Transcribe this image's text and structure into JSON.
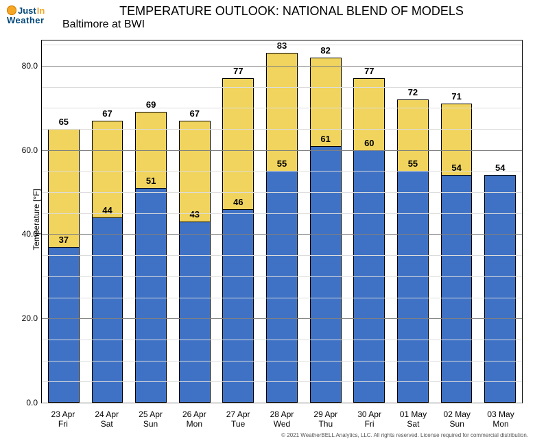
{
  "meta": {
    "title": "TEMPERATURE OUTLOOK: NATIONAL BLEND OF MODELS",
    "subtitle": "Baltimore at BWI",
    "ylabel": "Temperature [°F]",
    "copyright": "© 2021 WeatherBELL Analytics, LLC. All rights reserved. License required for commercial distribution.",
    "logo_line1a": "Just",
    "logo_line1b": "In",
    "logo_line2": "Weather"
  },
  "style": {
    "high_color": "#f0d45e",
    "low_color": "#3f72c5",
    "grid_major_color": "#808080",
    "grid_minor_color": "#dcdcdc",
    "bg": "#ffffff",
    "font_family": "Arial",
    "title_fontsize": 18,
    "axis_fontsize": 12,
    "value_fontsize": 13
  },
  "yaxis": {
    "min": 0.0,
    "max": 86.0,
    "major_ticks": [
      0.0,
      20.0,
      40.0,
      60.0,
      80.0
    ],
    "minor_step": 5.0
  },
  "series": [
    {
      "date": "23 Apr",
      "dow": "Fri",
      "high": 65,
      "low": 37
    },
    {
      "date": "24 Apr",
      "dow": "Sat",
      "high": 67,
      "low": 44
    },
    {
      "date": "25 Apr",
      "dow": "Sun",
      "high": 69,
      "low": 51
    },
    {
      "date": "26 Apr",
      "dow": "Mon",
      "high": 67,
      "low": 43
    },
    {
      "date": "27 Apr",
      "dow": "Tue",
      "high": 77,
      "low": 46
    },
    {
      "date": "28 Apr",
      "dow": "Wed",
      "high": 83,
      "low": 55
    },
    {
      "date": "29 Apr",
      "dow": "Thu",
      "high": 82,
      "low": 61
    },
    {
      "date": "30 Apr",
      "dow": "Fri",
      "high": 77,
      "low": 60
    },
    {
      "date": "01 May",
      "dow": "Sat",
      "high": 72,
      "low": 55
    },
    {
      "date": "02 May",
      "dow": "Sun",
      "high": 71,
      "low": 54
    },
    {
      "date": "03 May",
      "dow": "Mon",
      "high": null,
      "low": 54
    }
  ]
}
